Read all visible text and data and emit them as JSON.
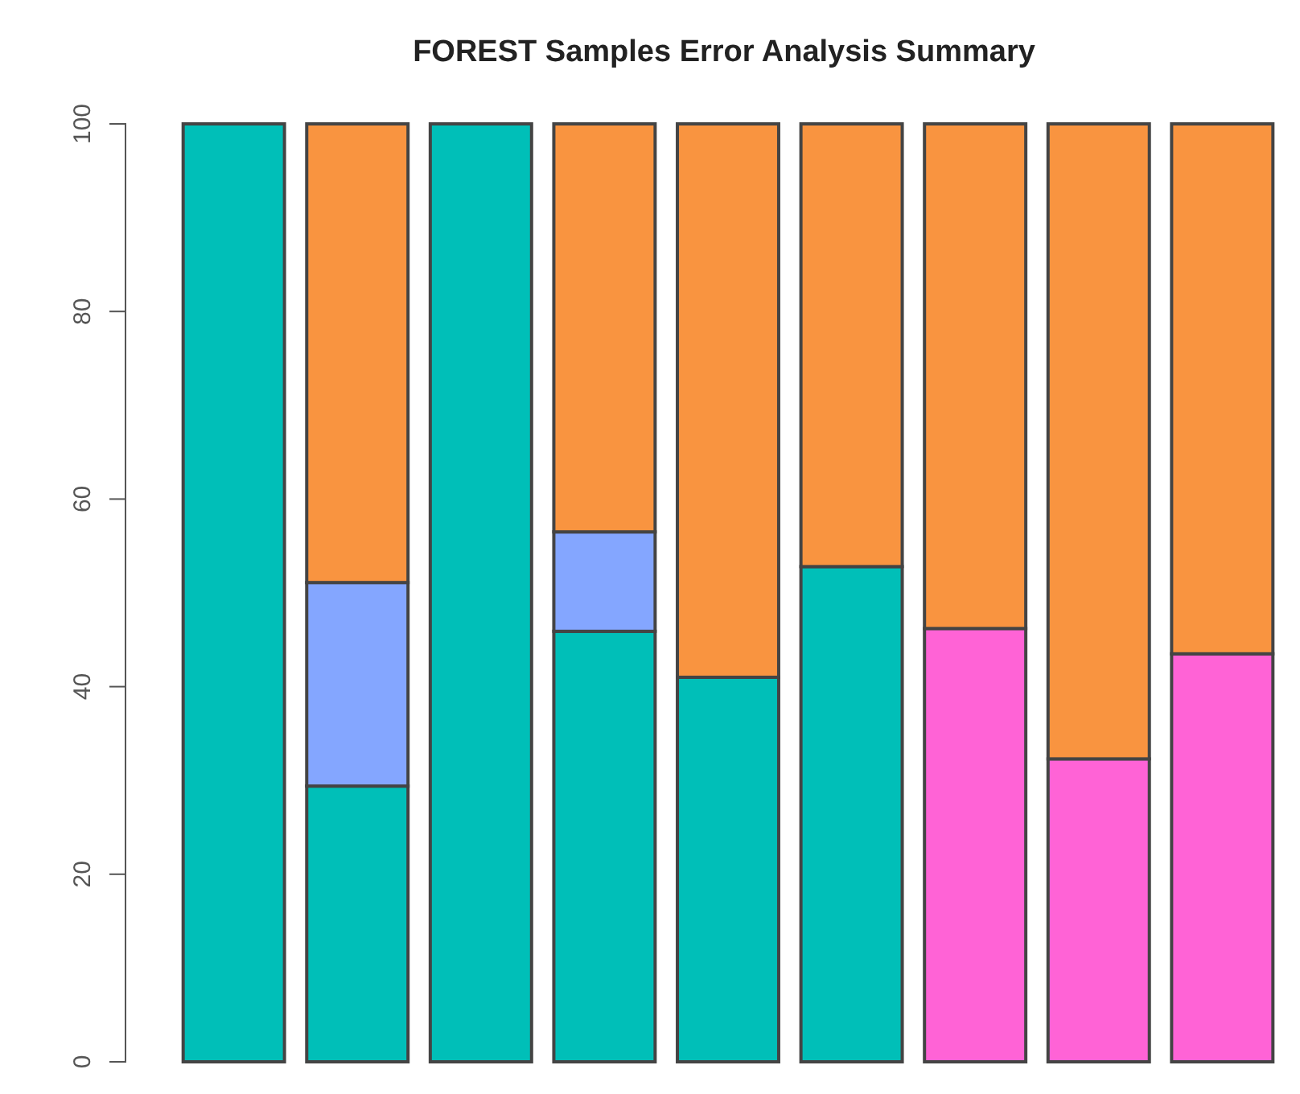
{
  "chart_data": {
    "type": "bar",
    "title": "FOREST Samples Error Analysis Summary",
    "stacked": true,
    "categories": [
      null,
      null,
      null,
      null,
      null,
      null,
      null,
      null,
      null
    ],
    "series": [
      {
        "color": "#00bfb8",
        "values": [
          100,
          29.4,
          100,
          45.9,
          41,
          52.8,
          null,
          null,
          null
        ]
      },
      {
        "color": "#84a6ff",
        "values": [
          null,
          21.7,
          null,
          10.6,
          null,
          null,
          null,
          null,
          null
        ]
      },
      {
        "color": "#ff63d6",
        "values": [
          null,
          null,
          null,
          null,
          null,
          null,
          46.2,
          32.3,
          43.5
        ]
      },
      {
        "color": "#f99440",
        "values": [
          null,
          48.9,
          null,
          43.5,
          59,
          47.2,
          53.8,
          67.7,
          56.5
        ]
      }
    ],
    "ylim": [
      0,
      100
    ],
    "yticks": [
      0,
      20,
      40,
      60,
      80,
      100
    ],
    "tick_labels": "y",
    "grid": false
  }
}
